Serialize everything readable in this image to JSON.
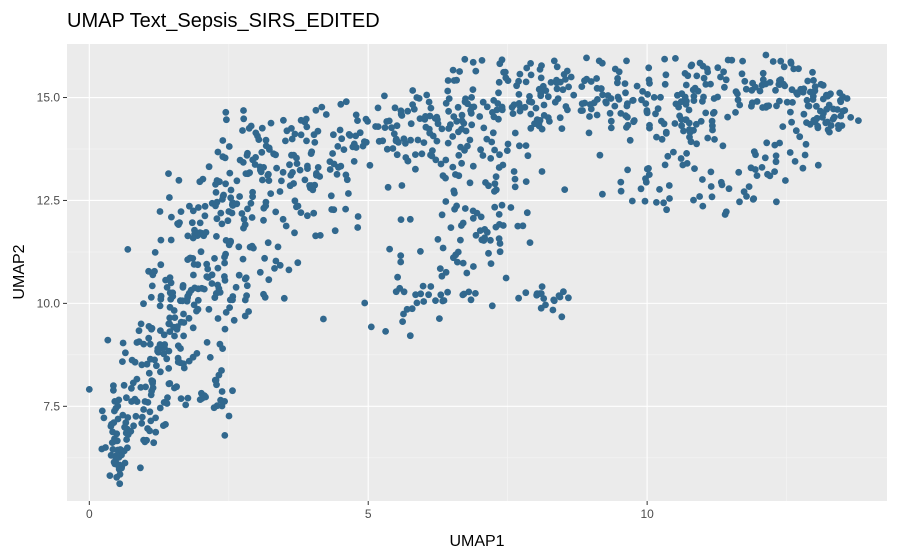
{
  "chart_data": {
    "type": "scatter",
    "title": "UMAP Text_Sepsis_SIRS_EDITED",
    "xlabel": "UMAP1",
    "ylabel": "UMAP2",
    "xlim": [
      -0.4,
      14.3
    ],
    "ylim": [
      5.2,
      16.3
    ],
    "x_ticks": [
      0,
      5,
      10
    ],
    "x_tick_labels": [
      "0",
      "5",
      "10"
    ],
    "y_ticks": [
      7.5,
      10.0,
      12.5,
      15.0
    ],
    "y_tick_labels": [
      "7.5",
      "10.0",
      "12.5",
      "15.0"
    ],
    "x_minor_ticks": [
      2.5,
      7.5,
      12.5
    ],
    "y_minor_ticks": [
      6.25,
      8.75,
      11.25,
      13.75
    ],
    "grid": true,
    "legend": "none",
    "colors": {
      "panel_background": "#ebebeb",
      "grid_major": "#ffffff",
      "grid_minor": "#f5f5f5",
      "point": "#31688e"
    },
    "clusters": [
      {
        "cx": 0.5,
        "cy": 6.3,
        "sx": 0.15,
        "sy": 0.4,
        "n": 35
      },
      {
        "cx": 0.9,
        "cy": 7.4,
        "sx": 0.35,
        "sy": 0.45,
        "n": 55
      },
      {
        "cx": 1.3,
        "cy": 8.9,
        "sx": 0.45,
        "sy": 0.7,
        "n": 70
      },
      {
        "cx": 1.8,
        "cy": 10.5,
        "sx": 0.45,
        "sy": 0.8,
        "n": 75
      },
      {
        "cx": 2.4,
        "cy": 12.2,
        "sx": 0.45,
        "sy": 0.8,
        "n": 75
      },
      {
        "cx": 3.2,
        "cy": 13.6,
        "sx": 0.5,
        "sy": 0.6,
        "n": 65
      },
      {
        "cx": 2.2,
        "cy": 7.8,
        "sx": 0.25,
        "sy": 0.35,
        "n": 22
      },
      {
        "cx": 2.8,
        "cy": 10.3,
        "sx": 0.5,
        "sy": 0.6,
        "n": 35
      },
      {
        "cx": 4.3,
        "cy": 13.0,
        "sx": 0.6,
        "sy": 0.8,
        "n": 65
      },
      {
        "cx": 5.6,
        "cy": 14.1,
        "sx": 0.6,
        "sy": 0.45,
        "n": 60
      },
      {
        "cx": 6.9,
        "cy": 14.8,
        "sx": 0.7,
        "sy": 0.55,
        "n": 75
      },
      {
        "cx": 8.2,
        "cy": 15.1,
        "sx": 0.7,
        "sy": 0.5,
        "n": 70
      },
      {
        "cx": 7.0,
        "cy": 13.3,
        "sx": 0.8,
        "sy": 0.6,
        "n": 50
      },
      {
        "cx": 6.1,
        "cy": 10.2,
        "sx": 0.5,
        "sy": 0.4,
        "n": 38
      },
      {
        "cx": 6.9,
        "cy": 11.5,
        "sx": 0.45,
        "sy": 0.55,
        "n": 42
      },
      {
        "cx": 8.1,
        "cy": 10.2,
        "sx": 0.4,
        "sy": 0.2,
        "n": 18
      },
      {
        "cx": 9.5,
        "cy": 14.9,
        "sx": 0.6,
        "sy": 0.45,
        "n": 55
      },
      {
        "cx": 10.8,
        "cy": 14.9,
        "sx": 0.6,
        "sy": 0.6,
        "n": 65
      },
      {
        "cx": 12.2,
        "cy": 15.2,
        "sx": 0.6,
        "sy": 0.5,
        "n": 70
      },
      {
        "cx": 13.3,
        "cy": 14.7,
        "sx": 0.3,
        "sy": 0.3,
        "n": 45
      },
      {
        "cx": 10.0,
        "cy": 12.7,
        "sx": 0.3,
        "sy": 0.35,
        "n": 18
      },
      {
        "cx": 11.7,
        "cy": 12.8,
        "sx": 0.5,
        "sy": 0.3,
        "n": 26
      },
      {
        "cx": 10.6,
        "cy": 13.9,
        "sx": 0.3,
        "sy": 0.4,
        "n": 15
      },
      {
        "cx": 12.5,
        "cy": 13.8,
        "sx": 0.35,
        "sy": 0.4,
        "n": 18
      }
    ]
  }
}
